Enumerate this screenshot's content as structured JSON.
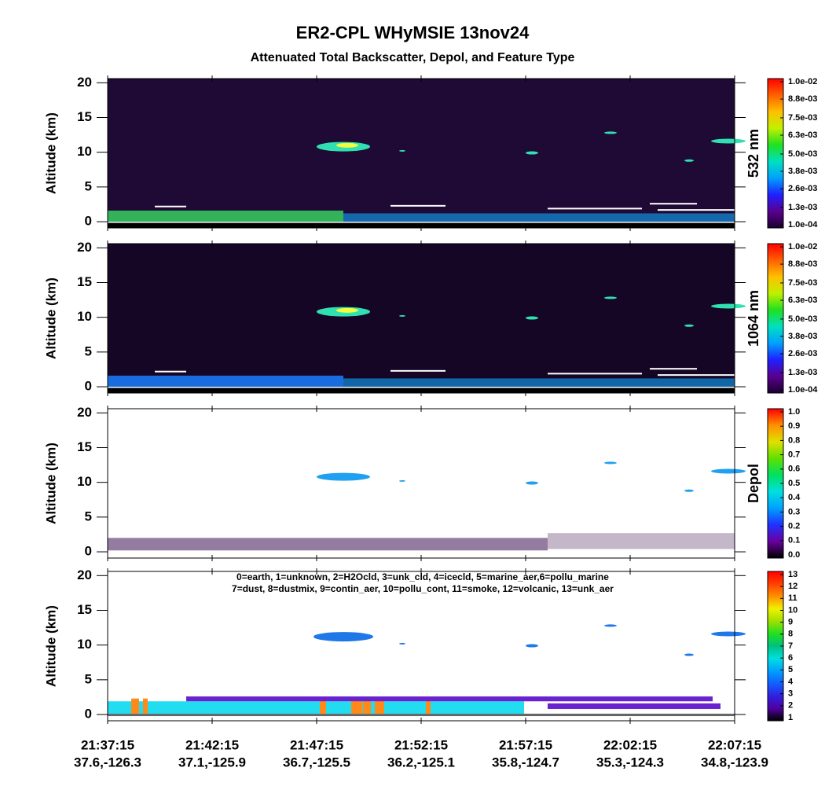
{
  "header": {
    "title": "ER2-CPL WHyMSIE 13nov24",
    "subtitle": "Attenuated Total Backscatter, Depol, and Feature Type"
  },
  "chart_data": [
    {
      "type": "curtain",
      "background": "#1e0a34",
      "y_label": "Altitude (km)",
      "ylim": [
        -0.9,
        20.6
      ],
      "yticks": [
        0,
        5,
        10,
        15,
        20
      ],
      "colorbar": {
        "label": "532 nm",
        "clim": [
          0.0001,
          0.01
        ],
        "ticks": [
          {
            "value": 0.0001,
            "label": "1.0e-04"
          },
          {
            "value": 0.0013,
            "label": "1.3e-03"
          },
          {
            "value": 0.0026,
            "label": "2.6e-03"
          },
          {
            "value": 0.0038,
            "label": "3.8e-03"
          },
          {
            "value": 0.005,
            "label": "5.0e-03"
          },
          {
            "value": 0.0063,
            "label": "6.3e-03"
          },
          {
            "value": 0.0075,
            "label": "7.5e-03"
          },
          {
            "value": 0.0088,
            "label": "8.8e-03"
          },
          {
            "value": 0.01,
            "label": "1.0e-02"
          }
        ],
        "colormap": [
          "#1a0030",
          "#5a0090",
          "#2020ff",
          "#00a0ff",
          "#00e0c0",
          "#20e020",
          "#c0f000",
          "#ffc000",
          "#ff6000",
          "#ff0000"
        ]
      }
    },
    {
      "type": "curtain",
      "background": "#160626",
      "y_label": "Altitude (km)",
      "ylim": [
        -0.9,
        20.6
      ],
      "yticks": [
        0,
        5,
        10,
        15,
        20
      ],
      "colorbar": {
        "label": "1064 nm",
        "clim": [
          0.0001,
          0.01
        ],
        "ticks": [
          {
            "value": 0.0001,
            "label": "1.0e-04"
          },
          {
            "value": 0.0013,
            "label": "1.3e-03"
          },
          {
            "value": 0.0026,
            "label": "2.6e-03"
          },
          {
            "value": 0.0038,
            "label": "3.8e-03"
          },
          {
            "value": 0.005,
            "label": "5.0e-03"
          },
          {
            "value": 0.0063,
            "label": "6.3e-03"
          },
          {
            "value": 0.0075,
            "label": "7.5e-03"
          },
          {
            "value": 0.0088,
            "label": "8.8e-03"
          },
          {
            "value": 0.01,
            "label": "1.0e-02"
          }
        ],
        "colormap": [
          "#1a0030",
          "#5a0090",
          "#2020ff",
          "#00a0ff",
          "#00e0c0",
          "#20e020",
          "#c0f000",
          "#ffc000",
          "#ff6000",
          "#ff0000"
        ]
      }
    },
    {
      "type": "curtain",
      "background": "#ffffff",
      "y_label": "Altitude (km)",
      "ylim": [
        -0.9,
        20.6
      ],
      "yticks": [
        0,
        5,
        10,
        15,
        20
      ],
      "colorbar": {
        "label": "Depol",
        "clim": [
          0,
          1
        ],
        "ticks": [
          {
            "value": 0,
            "label": "0.0"
          },
          0.1,
          0.2,
          0.3,
          0.4,
          0.5,
          0.6,
          0.7,
          0.8,
          0.9,
          {
            "value": 1,
            "label": "1.0"
          }
        ],
        "colormap": [
          "#000000",
          "#6a00a0",
          "#2030ff",
          "#00a0ff",
          "#00e0e0",
          "#00e060",
          "#60e000",
          "#e0e000",
          "#ff9000",
          "#ff0000"
        ]
      }
    },
    {
      "type": "curtain",
      "background": "#ffffff",
      "y_label": "Altitude (km)",
      "ylim": [
        -0.9,
        20.6
      ],
      "yticks": [
        0,
        5,
        10,
        15,
        20
      ],
      "annotations": [
        "0=earth, 1=unknown, 2=H2Ocld, 3=unk_cld, 4=icecld, 5=marine_aer,6=pollu_marine",
        "7=dust, 8=dustmix, 9=contin_aer, 10=pollu_cont, 11=smoke, 12=volcanic, 13=unk_aer"
      ],
      "categories": [
        "21:37:15",
        "21:42:15",
        "21:47:15",
        "21:52:15",
        "21:57:15",
        "22:02:15",
        "22:07:15"
      ],
      "category_locations": [
        "37.6,-126.3",
        "37.1,-125.9",
        "36.7,-125.5",
        "36.2,-125.1",
        "35.8,-124.7",
        "35.3,-124.3",
        "34.8,-123.9"
      ],
      "colorbar": {
        "clim": [
          1,
          13
        ],
        "ticks": [
          1,
          2,
          3,
          4,
          5,
          6,
          7,
          8,
          9,
          10,
          11,
          12,
          13
        ],
        "colormap": [
          "#000000",
          "#5000a0",
          "#3020e0",
          "#1060ff",
          "#00a0ff",
          "#00e0e0",
          "#00c080",
          "#20e020",
          "#a0e000",
          "#f0f000",
          "#ff9000",
          "#ff4000",
          "#ff0000"
        ]
      }
    }
  ]
}
